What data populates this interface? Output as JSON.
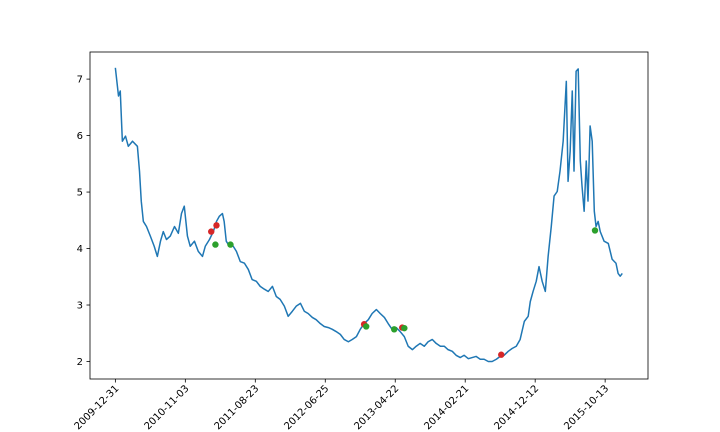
{
  "chart_data": {
    "type": "line",
    "xlim": [
      -72.5,
      1522.5
    ],
    "ylim": [
      1.69,
      7.48
    ],
    "xticks": [
      {
        "value": 0,
        "label": "2009-12-31"
      },
      {
        "value": 200,
        "label": "2010-11-03"
      },
      {
        "value": 400,
        "label": "2011-08-23"
      },
      {
        "value": 600,
        "label": "2012-06-25"
      },
      {
        "value": 800,
        "label": "2013-04-22"
      },
      {
        "value": 1000,
        "label": "2014-02-21"
      },
      {
        "value": 1200,
        "label": "2014-12-12"
      },
      {
        "value": 1400,
        "label": "2015-10-13"
      }
    ],
    "yticks": [
      2,
      3,
      4,
      5,
      6,
      7
    ],
    "series": [
      {
        "style": "line",
        "color": "#1f77b4",
        "x": [
          0,
          9,
          14,
          20,
          29,
          37,
          49,
          63,
          69,
          74,
          80,
          89,
          100,
          111,
          120,
          129,
          137,
          146,
          157,
          169,
          180,
          189,
          197,
          206,
          214,
          226,
          237,
          249,
          257,
          269,
          280,
          289,
          297,
          306,
          311,
          317,
          326,
          334,
          346,
          357,
          369,
          380,
          391,
          403,
          414,
          426,
          437,
          449,
          460,
          471,
          483,
          494,
          506,
          517,
          529,
          540,
          551,
          563,
          574,
          586,
          597,
          609,
          620,
          631,
          643,
          654,
          666,
          677,
          689,
          700,
          711,
          723,
          734,
          746,
          757,
          769,
          780,
          791,
          803,
          814,
          826,
          837,
          849,
          860,
          871,
          883,
          894,
          906,
          917,
          929,
          940,
          951,
          963,
          974,
          986,
          997,
          1009,
          1020,
          1031,
          1043,
          1054,
          1066,
          1077,
          1089,
          1100,
          1111,
          1123,
          1134,
          1146,
          1157,
          1169,
          1180,
          1186,
          1194,
          1203,
          1211,
          1220,
          1229,
          1237,
          1246,
          1254,
          1263,
          1271,
          1280,
          1289,
          1294,
          1300,
          1306,
          1311,
          1317,
          1323,
          1329,
          1334,
          1340,
          1346,
          1351,
          1357,
          1363,
          1369,
          1374,
          1380,
          1386,
          1397,
          1409,
          1420,
          1431,
          1437,
          1443,
          1449
        ],
        "values": [
          7.2,
          6.7,
          6.79,
          5.9,
          5.99,
          5.81,
          5.9,
          5.81,
          5.37,
          4.84,
          4.48,
          4.39,
          4.22,
          4.04,
          3.86,
          4.13,
          4.3,
          4.16,
          4.22,
          4.39,
          4.27,
          4.62,
          4.75,
          4.22,
          4.04,
          4.13,
          3.95,
          3.86,
          4.04,
          4.16,
          4.3,
          4.48,
          4.57,
          4.62,
          4.48,
          4.13,
          4.04,
          4.07,
          3.95,
          3.77,
          3.74,
          3.63,
          3.45,
          3.42,
          3.33,
          3.28,
          3.24,
          3.33,
          3.15,
          3.1,
          2.98,
          2.8,
          2.89,
          2.98,
          3.03,
          2.89,
          2.85,
          2.78,
          2.74,
          2.67,
          2.62,
          2.6,
          2.57,
          2.53,
          2.48,
          2.39,
          2.35,
          2.39,
          2.44,
          2.57,
          2.67,
          2.74,
          2.85,
          2.92,
          2.85,
          2.78,
          2.67,
          2.57,
          2.6,
          2.53,
          2.44,
          2.27,
          2.21,
          2.27,
          2.32,
          2.27,
          2.35,
          2.39,
          2.32,
          2.27,
          2.27,
          2.21,
          2.18,
          2.11,
          2.07,
          2.11,
          2.05,
          2.07,
          2.09,
          2.04,
          2.04,
          2.0,
          2.0,
          2.04,
          2.09,
          2.11,
          2.18,
          2.23,
          2.27,
          2.39,
          2.71,
          2.8,
          3.06,
          3.24,
          3.42,
          3.68,
          3.42,
          3.24,
          3.86,
          4.39,
          4.93,
          5.01,
          5.37,
          5.9,
          6.96,
          5.19,
          5.72,
          6.79,
          5.37,
          7.14,
          7.18,
          5.55,
          5.1,
          4.66,
          5.55,
          4.84,
          6.17,
          5.9,
          4.66,
          4.39,
          4.48,
          4.3,
          4.13,
          4.09,
          3.81,
          3.74,
          3.56,
          3.51,
          3.56
        ]
      },
      {
        "style": "points",
        "color": "#d62728",
        "x": [
          274,
          289,
          711,
          820,
          1103
        ],
        "values": [
          4.3,
          4.41,
          2.66,
          2.6,
          2.12
        ]
      },
      {
        "style": "points",
        "color": "#2ca02c",
        "x": [
          286,
          329,
          717,
          797,
          826,
          1371
        ],
        "values": [
          4.07,
          4.07,
          2.62,
          2.57,
          2.59,
          4.32
        ]
      }
    ]
  }
}
